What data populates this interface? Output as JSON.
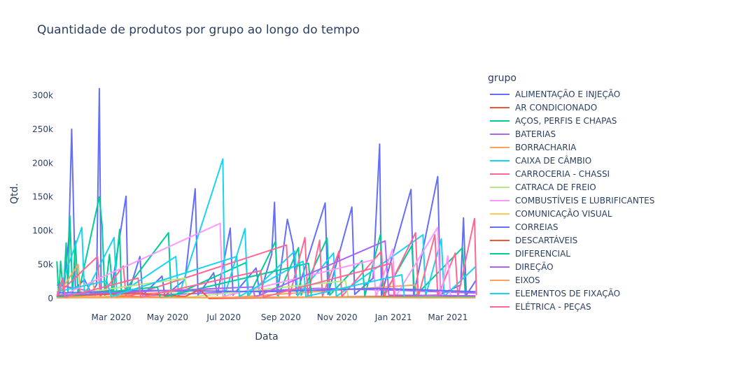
{
  "chart_data": {
    "type": "line",
    "title": "Quantidade de produtos por grupo ao longo do tempo",
    "xlabel": "Data",
    "ylabel": "Qtd.",
    "legend_title": "grupo",
    "legend_position": "right",
    "grid": false,
    "xlim": [
      "2020-01-01",
      "2021-04-02"
    ],
    "ylim": [
      0,
      320000
    ],
    "x_ticks": [
      {
        "date": "2020-03-01",
        "label": "Mar 2020"
      },
      {
        "date": "2020-05-01",
        "label": "May 2020"
      },
      {
        "date": "2020-07-01",
        "label": "Jul 2020"
      },
      {
        "date": "2020-09-01",
        "label": "Sep 2020"
      },
      {
        "date": "2020-11-01",
        "label": "Nov 2020"
      },
      {
        "date": "2021-01-01",
        "label": "Jan 2021"
      },
      {
        "date": "2021-03-01",
        "label": "Mar 2021"
      }
    ],
    "y_ticks": [
      {
        "value": 0,
        "label": "0"
      },
      {
        "value": 50000,
        "label": "50k"
      },
      {
        "value": 100000,
        "label": "100k"
      },
      {
        "value": 150000,
        "label": "150k"
      },
      {
        "value": 200000,
        "label": "200k"
      },
      {
        "value": 250000,
        "label": "250k"
      },
      {
        "value": 300000,
        "label": "300k"
      }
    ],
    "series": [
      {
        "name": "ALIMENTAÇÃO E INJEÇÃO",
        "color": "#636efa",
        "points": [
          [
            "2020-01-02",
            5000
          ],
          [
            "2020-01-10",
            20000
          ],
          [
            "2020-01-15",
            90000
          ],
          [
            "2020-01-18",
            250000
          ],
          [
            "2020-01-22",
            15000
          ],
          [
            "2020-02-01",
            28000
          ],
          [
            "2020-02-08",
            8000
          ],
          [
            "2020-02-14",
            20000
          ],
          [
            "2020-02-17",
            310000
          ],
          [
            "2020-02-19",
            10000
          ],
          [
            "2020-03-01",
            12000
          ],
          [
            "2020-03-17",
            151000
          ],
          [
            "2020-03-19",
            5000
          ],
          [
            "2020-04-01",
            62000
          ],
          [
            "2020-04-04",
            5000
          ],
          [
            "2020-04-25",
            33000
          ],
          [
            "2020-04-28",
            4000
          ],
          [
            "2020-05-20",
            28000
          ],
          [
            "2020-05-31",
            162000
          ],
          [
            "2020-06-03",
            5000
          ],
          [
            "2020-06-20",
            38000
          ],
          [
            "2020-06-24",
            5000
          ],
          [
            "2020-07-08",
            104000
          ],
          [
            "2020-07-11",
            5000
          ],
          [
            "2020-08-05",
            45000
          ],
          [
            "2020-08-09",
            5000
          ],
          [
            "2020-08-22",
            65000
          ],
          [
            "2020-08-25",
            142000
          ],
          [
            "2020-08-28",
            5000
          ],
          [
            "2020-09-08",
            117000
          ],
          [
            "2020-09-14",
            80000
          ],
          [
            "2020-09-18",
            6000
          ],
          [
            "2020-10-19",
            141000
          ],
          [
            "2020-10-22",
            6000
          ],
          [
            "2020-11-17",
            135000
          ],
          [
            "2020-11-20",
            6000
          ],
          [
            "2020-12-10",
            30000
          ],
          [
            "2020-12-17",
            228000
          ],
          [
            "2020-12-19",
            5000
          ],
          [
            "2021-01-20",
            161000
          ],
          [
            "2021-01-23",
            5000
          ],
          [
            "2021-02-18",
            180000
          ],
          [
            "2021-02-21",
            6000
          ],
          [
            "2021-03-15",
            20000
          ],
          [
            "2021-03-18",
            119000
          ],
          [
            "2021-03-21",
            5000
          ],
          [
            "2021-04-01",
            28000
          ]
        ]
      },
      {
        "name": "AR CONDICIONADO",
        "color": "#ef553b",
        "points": [
          [
            "2020-01-02",
            2000
          ],
          [
            "2020-03-20",
            3000
          ],
          [
            "2020-06-01",
            1000
          ],
          [
            "2020-09-01",
            2000
          ],
          [
            "2020-12-01",
            1500
          ],
          [
            "2021-03-31",
            1000
          ]
        ]
      },
      {
        "name": "AÇOS, PERFIS E CHAPAS",
        "color": "#00cc96",
        "points": [
          [
            "2020-01-02",
            55000
          ],
          [
            "2020-01-04",
            2000
          ],
          [
            "2020-01-06",
            55000
          ],
          [
            "2020-01-09",
            5000
          ],
          [
            "2020-01-12",
            82000
          ],
          [
            "2020-01-14",
            10000
          ],
          [
            "2020-01-16",
            122000
          ],
          [
            "2020-01-19",
            5000
          ],
          [
            "2020-01-22",
            85000
          ],
          [
            "2020-01-25",
            5000
          ],
          [
            "2020-02-17",
            150000
          ],
          [
            "2020-02-20",
            108000
          ],
          [
            "2020-02-23",
            5000
          ],
          [
            "2020-02-28",
            65000
          ],
          [
            "2020-03-03",
            5000
          ],
          [
            "2020-03-10",
            102000
          ],
          [
            "2020-03-12",
            5000
          ],
          [
            "2020-05-02",
            97000
          ],
          [
            "2020-05-05",
            3000
          ],
          [
            "2020-07-25",
            53000
          ],
          [
            "2020-07-28",
            3000
          ],
          [
            "2020-08-26",
            84000
          ],
          [
            "2020-08-29",
            4000
          ],
          [
            "2020-09-20",
            75000
          ],
          [
            "2020-09-23",
            5000
          ],
          [
            "2020-10-21",
            89000
          ],
          [
            "2020-10-24",
            5000
          ],
          [
            "2020-11-28",
            56000
          ],
          [
            "2020-12-01",
            4000
          ],
          [
            "2020-12-18",
            95000
          ],
          [
            "2020-12-21",
            4000
          ],
          [
            "2021-01-21",
            78000
          ],
          [
            "2021-01-24",
            3000
          ],
          [
            "2021-03-17",
            75000
          ],
          [
            "2021-03-20",
            4000
          ]
        ]
      },
      {
        "name": "BATERIAS",
        "color": "#ab63fa",
        "points": [
          [
            "2020-01-02",
            20000
          ],
          [
            "2020-02-10",
            10000
          ],
          [
            "2020-04-15",
            5000
          ],
          [
            "2020-07-20",
            10000
          ],
          [
            "2020-10-10",
            15000
          ],
          [
            "2021-01-10",
            12000
          ],
          [
            "2021-03-31",
            8000
          ]
        ]
      },
      {
        "name": "BORRACHARIA",
        "color": "#ffa15a",
        "points": [
          [
            "2020-01-02",
            3000
          ],
          [
            "2020-01-25",
            50000
          ],
          [
            "2020-01-28",
            2000
          ],
          [
            "2020-02-10",
            25000
          ],
          [
            "2020-02-13",
            2000
          ],
          [
            "2020-06-30",
            15000
          ],
          [
            "2020-07-03",
            1000
          ],
          [
            "2021-01-25",
            20000
          ],
          [
            "2021-01-28",
            1000
          ],
          [
            "2021-03-31",
            2000
          ]
        ]
      },
      {
        "name": "CAIXA DE CÂMBIO",
        "color": "#19d3f3",
        "points": [
          [
            "2020-01-02",
            2000
          ],
          [
            "2020-01-29",
            105000
          ],
          [
            "2020-02-01",
            5000
          ],
          [
            "2020-03-04",
            90000
          ],
          [
            "2020-03-07",
            4000
          ],
          [
            "2020-05-10",
            62000
          ],
          [
            "2020-05-13",
            3000
          ],
          [
            "2020-06-30",
            206000
          ],
          [
            "2020-07-02",
            5000
          ],
          [
            "2020-07-24",
            103000
          ],
          [
            "2020-07-27",
            4000
          ],
          [
            "2020-09-16",
            70000
          ],
          [
            "2020-09-19",
            4000
          ],
          [
            "2020-10-28",
            67000
          ],
          [
            "2020-10-31",
            3000
          ],
          [
            "2021-02-02",
            94000
          ],
          [
            "2021-02-05",
            4000
          ],
          [
            "2021-02-22",
            88000
          ],
          [
            "2021-02-25",
            3000
          ],
          [
            "2021-03-31",
            47000
          ]
        ]
      },
      {
        "name": "CARROCERIA - CHASSI",
        "color": "#ff6692",
        "points": [
          [
            "2020-01-02",
            5000
          ],
          [
            "2020-02-15",
            62000
          ],
          [
            "2020-02-18",
            3000
          ],
          [
            "2020-03-14",
            48000
          ],
          [
            "2020-03-17",
            2000
          ],
          [
            "2020-09-07",
            79000
          ],
          [
            "2020-09-10",
            3000
          ],
          [
            "2020-09-27",
            90000
          ],
          [
            "2020-09-30",
            3000
          ],
          [
            "2020-10-13",
            86000
          ],
          [
            "2020-10-16",
            3000
          ],
          [
            "2020-11-03",
            70000
          ],
          [
            "2020-11-06",
            3000
          ],
          [
            "2020-12-19",
            70000
          ],
          [
            "2020-12-22",
            3000
          ],
          [
            "2021-01-25",
            97000
          ],
          [
            "2021-01-28",
            3000
          ],
          [
            "2021-02-15",
            94000
          ],
          [
            "2021-02-18",
            3000
          ],
          [
            "2021-03-09",
            67000
          ],
          [
            "2021-03-12",
            3000
          ],
          [
            "2021-03-30",
            118000
          ],
          [
            "2021-04-01",
            5000
          ]
        ]
      },
      {
        "name": "CATRACA DE FREIO",
        "color": "#b6e880",
        "points": [
          [
            "2020-01-02",
            3000
          ],
          [
            "2020-05-20",
            30000
          ],
          [
            "2020-05-23",
            2000
          ],
          [
            "2020-11-10",
            26000
          ],
          [
            "2020-11-13",
            2000
          ],
          [
            "2021-03-31",
            3000
          ]
        ]
      },
      {
        "name": "COMBUSTÍVEIS E LUBRIFICANTES",
        "color": "#ff97ff",
        "points": [
          [
            "2020-01-02",
            1000
          ],
          [
            "2020-06-27",
            111000
          ],
          [
            "2020-06-30",
            3000
          ],
          [
            "2020-12-10",
            57000
          ],
          [
            "2020-12-13",
            2000
          ],
          [
            "2020-12-31",
            73000
          ],
          [
            "2021-01-03",
            2000
          ],
          [
            "2021-02-18",
            105000
          ],
          [
            "2021-02-21",
            2000
          ],
          [
            "2021-03-01",
            63000
          ],
          [
            "2021-03-04",
            2000
          ]
        ]
      },
      {
        "name": "COMUNICAÇÃO VISUAL",
        "color": "#fecb52",
        "points": [
          [
            "2020-01-02",
            2000
          ],
          [
            "2020-06-01",
            1000
          ],
          [
            "2020-12-01",
            2000
          ],
          [
            "2021-03-31",
            1000
          ]
        ]
      },
      {
        "name": "CORREIAS",
        "color": "#636efa",
        "points": [
          [
            "2020-01-02",
            8000
          ],
          [
            "2020-04-10",
            12000
          ],
          [
            "2020-08-15",
            10000
          ],
          [
            "2020-12-15",
            15000
          ],
          [
            "2021-03-31",
            10000
          ]
        ]
      },
      {
        "name": "DESCARTÁVEIS",
        "color": "#ef553b",
        "points": [
          [
            "2020-01-02",
            3000
          ],
          [
            "2020-03-25",
            8000
          ],
          [
            "2020-05-20",
            3000
          ],
          [
            "2020-06-05",
            13000
          ],
          [
            "2020-06-15",
            0
          ],
          [
            "2020-12-20",
            3000
          ],
          [
            "2021-02-15",
            5000
          ],
          [
            "2021-03-10",
            3000
          ]
        ]
      },
      {
        "name": "DIFERENCIAL",
        "color": "#00cc96",
        "points": [
          [
            "2020-01-02",
            2000
          ],
          [
            "2020-04-20",
            17000
          ],
          [
            "2020-04-23",
            1000
          ],
          [
            "2020-10-01",
            52000
          ],
          [
            "2020-10-04",
            2000
          ],
          [
            "2021-03-31",
            2000
          ]
        ]
      },
      {
        "name": "DIREÇÃO",
        "color": "#ab63fa",
        "points": [
          [
            "2020-01-02",
            5000
          ],
          [
            "2020-08-01",
            17000
          ],
          [
            "2020-08-04",
            2000
          ],
          [
            "2020-12-23",
            85000
          ],
          [
            "2020-12-27",
            5000
          ],
          [
            "2021-03-31",
            4000
          ]
        ]
      },
      {
        "name": "EIXOS",
        "color": "#ffa15a",
        "points": [
          [
            "2020-01-02",
            1000
          ],
          [
            "2020-10-01",
            2000
          ],
          [
            "2021-03-31",
            1000
          ]
        ]
      },
      {
        "name": "ELEMENTOS DE FIXAÇÃO",
        "color": "#19d3f3",
        "points": [
          [
            "2020-01-02",
            10000
          ],
          [
            "2020-02-25",
            26000
          ],
          [
            "2020-03-01",
            3000
          ],
          [
            "2020-07-15",
            62000
          ],
          [
            "2020-07-18",
            3000
          ],
          [
            "2020-09-25",
            55000
          ],
          [
            "2020-09-28",
            3000
          ],
          [
            "2021-01-10",
            35000
          ],
          [
            "2021-01-13",
            3000
          ]
        ]
      },
      {
        "name": "ELÉTRICA - PEÇAS",
        "color": "#ff6692",
        "points": [
          [
            "2020-01-02",
            3000
          ],
          [
            "2020-01-08",
            30000
          ],
          [
            "2020-01-11",
            2000
          ],
          [
            "2020-03-30",
            30000
          ],
          [
            "2020-04-02",
            2000
          ],
          [
            "2020-08-10",
            41000
          ],
          [
            "2020-08-13",
            2000
          ],
          [
            "2020-12-30",
            52000
          ],
          [
            "2021-01-02",
            2000
          ]
        ]
      }
    ]
  }
}
